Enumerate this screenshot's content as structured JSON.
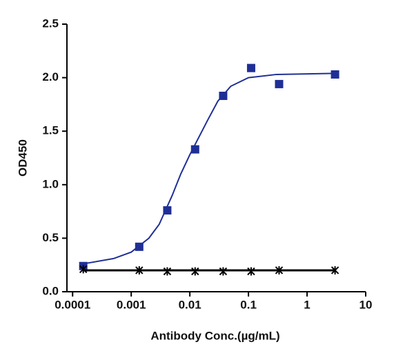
{
  "chart_data": {
    "type": "scatter",
    "x_label": "Antibody Conc.(µg/mL)",
    "y_label": "OD450",
    "x_log": true,
    "x": [
      0.000152,
      0.00137,
      0.00412,
      0.0123,
      0.037,
      0.111,
      0.333,
      3
    ],
    "series": [
      {
        "color": "#1f2f96",
        "marker": "square",
        "values": [
          0.24,
          0.42,
          0.76,
          1.33,
          1.83,
          2.09,
          1.94,
          2.03
        ],
        "fit": {
          "x": [
            0.00015,
            0.0005,
            0.001,
            0.002,
            0.003,
            0.005,
            0.007,
            0.01,
            0.02,
            0.03,
            0.05,
            0.1,
            0.3,
            3
          ],
          "values": [
            0.26,
            0.31,
            0.37,
            0.5,
            0.63,
            0.9,
            1.1,
            1.28,
            1.6,
            1.78,
            1.92,
            2.0,
            2.03,
            2.04
          ]
        }
      },
      {
        "color": "#000000",
        "marker": "cross",
        "values": [
          0.21,
          0.2,
          0.19,
          0.19,
          0.19,
          0.19,
          0.2,
          0.2
        ],
        "fit": {
          "x": [
            0.000152,
            3
          ],
          "values": [
            0.2,
            0.2
          ]
        }
      }
    ],
    "xlim": [
      8e-05,
      10
    ],
    "xticks": [
      0.0001,
      0.001,
      0.01,
      0.1,
      1,
      10
    ],
    "ylim": [
      0,
      2.5
    ],
    "yticks": [
      {
        "value": 0,
        "label": "0.0"
      },
      {
        "value": 0.5,
        "label": "0.5"
      },
      {
        "value": 1,
        "label": "1.0"
      },
      {
        "value": 1.5,
        "label": "1.5"
      },
      {
        "value": 2,
        "label": "2.0"
      },
      {
        "value": 2.5,
        "label": "2.5"
      }
    ]
  }
}
